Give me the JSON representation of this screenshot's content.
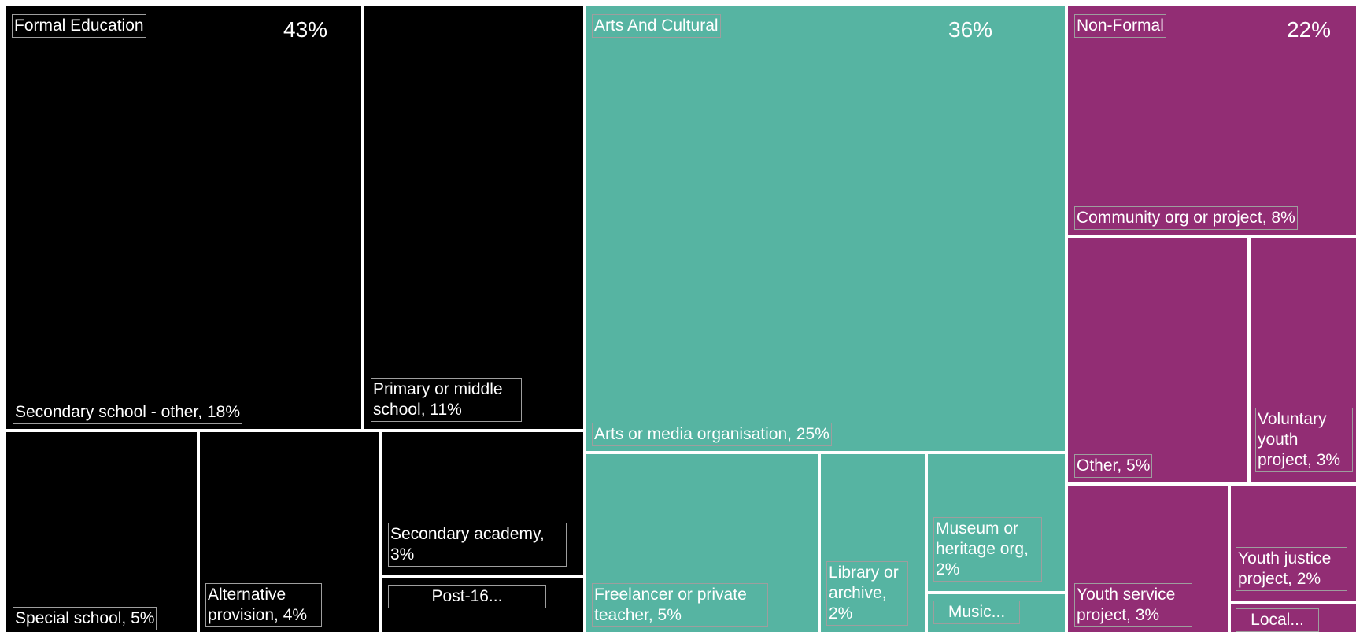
{
  "chart_data": {
    "type": "treemap",
    "groups": [
      {
        "name": "Formal Education",
        "percent_label": "43%",
        "color": "#000000",
        "items": [
          {
            "label": "Secondary school - other, 18%",
            "name": "Secondary school - other",
            "value": 18
          },
          {
            "label": "Primary or middle school, 11%",
            "name": "Primary or middle school",
            "value": 11
          },
          {
            "label": "Special school, 5%",
            "name": "Special school",
            "value": 5
          },
          {
            "label": "Alternative provision, 4%",
            "name": "Alternative provision",
            "value": 4
          },
          {
            "label": "Secondary academy, 3%",
            "name": "Secondary academy",
            "value": 3
          },
          {
            "label": "Post-16...",
            "name": "Post-16..."
          }
        ]
      },
      {
        "name": "Arts And Cultural",
        "percent_label": "36%",
        "color": "#56b4a2",
        "items": [
          {
            "label": "Arts or media organisation, 25%",
            "name": "Arts or media organisation",
            "value": 25
          },
          {
            "label": "Freelancer or private teacher, 5%",
            "name": "Freelancer or private teacher",
            "value": 5
          },
          {
            "label": "Library or archive, 2%",
            "name": "Library or archive",
            "value": 2
          },
          {
            "label": "Museum or heritage org, 2%",
            "name": "Museum or heritage org",
            "value": 2
          },
          {
            "label": "Music...",
            "name": "Music..."
          }
        ]
      },
      {
        "name": "Non-Formal",
        "percent_label": "22%",
        "color": "#922d74",
        "items": [
          {
            "label": "Community org or project, 8%",
            "name": "Community org or project",
            "value": 8
          },
          {
            "label": "Other, 5%",
            "name": "Other",
            "value": 5
          },
          {
            "label": "Voluntary youth project, 3%",
            "name": "Voluntary youth project",
            "value": 3
          },
          {
            "label": "Youth service project, 3%",
            "name": "Youth service project",
            "value": 3
          },
          {
            "label": "Youth justice project, 2%",
            "name": "Youth justice project",
            "value": 2
          },
          {
            "label": "Local...",
            "name": "Local..."
          }
        ]
      }
    ]
  }
}
